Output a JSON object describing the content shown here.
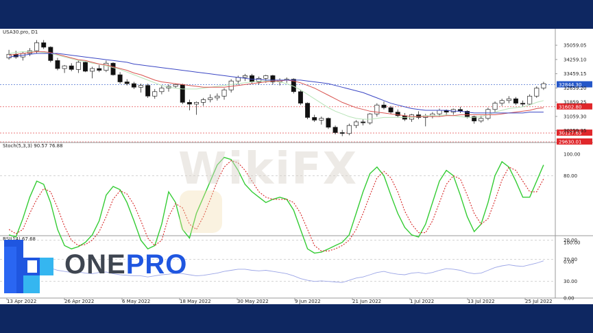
{
  "chart_data": {
    "type": "candlestick",
    "title": "USA30.pro, D1",
    "x_ticks": [
      "13 Apr 2022",
      "26 Apr 2022",
      "6 May 2022",
      "18 May 2022",
      "30 May 2022",
      "9 Jun 2022",
      "21 Jun 2022",
      "1 Jul 2022",
      "13 Jul 2022",
      "25 Jul 2022"
    ],
    "price_axis": {
      "range": [
        29630,
        35600
      ],
      "ticks": [
        "35059.05",
        "34259.10",
        "33459.15",
        "32659.20",
        "31859.25",
        "31059.30",
        "30259.35"
      ]
    },
    "price_tags": [
      {
        "label": "32844.30",
        "value": 32844.3,
        "color": "#2456c8"
      },
      {
        "label": "31602.80",
        "value": 31602.8,
        "color": "#e0272b"
      },
      {
        "label": "30127.63",
        "value": 30127.63,
        "color": "#e0272b"
      },
      {
        "label": "29630.01",
        "value": 29630.01,
        "color": "#e0272b"
      }
    ],
    "candles": [
      [
        34350,
        34800,
        34250,
        34550
      ],
      [
        34550,
        34750,
        34300,
        34400
      ],
      [
        34400,
        34700,
        34200,
        34600
      ],
      [
        34600,
        34900,
        34450,
        34750
      ],
      [
        34750,
        35350,
        34600,
        35200
      ],
      [
        35200,
        35350,
        34850,
        34950
      ],
      [
        34950,
        35000,
        34100,
        34200
      ],
      [
        34200,
        34350,
        33650,
        33750
      ],
      [
        33750,
        33950,
        33500,
        33900
      ],
      [
        33900,
        34050,
        33600,
        33700
      ],
      [
        33700,
        34200,
        33500,
        34100
      ],
      [
        34100,
        34150,
        33550,
        33600
      ],
      [
        33600,
        33850,
        33200,
        33750
      ],
      [
        33750,
        33950,
        33550,
        33650
      ],
      [
        33650,
        34200,
        33550,
        34050
      ],
      [
        34050,
        34100,
        33350,
        33400
      ],
      [
        33400,
        33550,
        32900,
        33000
      ],
      [
        33000,
        33150,
        32800,
        32900
      ],
      [
        32900,
        33000,
        32600,
        32700
      ],
      [
        32700,
        32900,
        32400,
        32800
      ],
      [
        32800,
        32900,
        32100,
        32200
      ],
      [
        32200,
        32600,
        32050,
        32450
      ],
      [
        32450,
        32800,
        32300,
        32650
      ],
      [
        32650,
        32850,
        32450,
        32750
      ],
      [
        32750,
        32900,
        32650,
        32850
      ],
      [
        32850,
        32900,
        31750,
        31850
      ],
      [
        31850,
        32000,
        31400,
        31750
      ],
      [
        31750,
        31900,
        31150,
        31850
      ],
      [
        31850,
        32100,
        31650,
        32000
      ],
      [
        32000,
        32300,
        31850,
        32100
      ],
      [
        32100,
        32350,
        31950,
        32200
      ],
      [
        32200,
        32650,
        32000,
        32550
      ],
      [
        32550,
        33150,
        32400,
        33050
      ],
      [
        33050,
        33350,
        32850,
        33250
      ],
      [
        33250,
        33450,
        33050,
        33350
      ],
      [
        33350,
        33450,
        32900,
        33000
      ],
      [
        33000,
        33300,
        32850,
        33200
      ],
      [
        33200,
        33400,
        32950,
        33350
      ],
      [
        33350,
        33400,
        32850,
        33000
      ],
      [
        33000,
        33200,
        32800,
        33100
      ],
      [
        33100,
        33250,
        32950,
        33150
      ],
      [
        33150,
        33200,
        32350,
        32450
      ],
      [
        32450,
        32550,
        31700,
        31800
      ],
      [
        31800,
        31850,
        30900,
        31000
      ],
      [
        31000,
        31150,
        30750,
        30850
      ],
      [
        30850,
        31050,
        30600,
        30950
      ],
      [
        30950,
        31000,
        30350,
        30450
      ],
      [
        30450,
        30550,
        30050,
        30150
      ],
      [
        30150,
        30300,
        29950,
        30100
      ],
      [
        30100,
        30650,
        30000,
        30550
      ],
      [
        30550,
        30850,
        30400,
        30750
      ],
      [
        30750,
        30900,
        30550,
        30700
      ],
      [
        30700,
        31250,
        30600,
        31200
      ],
      [
        31200,
        31800,
        31050,
        31700
      ],
      [
        31700,
        31900,
        31450,
        31550
      ],
      [
        31550,
        31650,
        31200,
        31300
      ],
      [
        31300,
        31450,
        31000,
        31100
      ],
      [
        31100,
        31250,
        30800,
        30900
      ],
      [
        30900,
        31200,
        30750,
        31150
      ],
      [
        31150,
        31350,
        30900,
        31000
      ],
      [
        31000,
        31200,
        30500,
        31100
      ],
      [
        31100,
        31300,
        30950,
        31200
      ],
      [
        31200,
        31500,
        31050,
        31400
      ],
      [
        31400,
        31450,
        31100,
        31300
      ],
      [
        31300,
        31500,
        31150,
        31450
      ],
      [
        31450,
        31600,
        31250,
        31350
      ],
      [
        31350,
        31400,
        30950,
        31050
      ],
      [
        31050,
        31100,
        30650,
        30800
      ],
      [
        30800,
        31100,
        30700,
        30950
      ],
      [
        30950,
        31550,
        30850,
        31450
      ],
      [
        31450,
        31900,
        31300,
        31800
      ],
      [
        31800,
        32050,
        31650,
        31950
      ],
      [
        31950,
        32200,
        31800,
        32050
      ],
      [
        32050,
        32150,
        31700,
        31800
      ],
      [
        31800,
        31950,
        31600,
        31750
      ],
      [
        31750,
        32300,
        31700,
        32200
      ],
      [
        32200,
        32750,
        32100,
        32650
      ],
      [
        32650,
        33000,
        32550,
        32900
      ]
    ],
    "ma_fast": [
      34500,
      34550,
      34600,
      34650,
      34700,
      34700,
      34650,
      34550,
      34450,
      34350,
      34250,
      34200,
      34100,
      34000,
      33950,
      33850,
      33750,
      33650,
      33500,
      33400,
      33250,
      33100,
      33000,
      32950,
      32900,
      32850,
      32800,
      32750,
      32700,
      32700,
      32700,
      32700,
      32750,
      32800,
      32850,
      32900,
      32950,
      33000,
      33050,
      33050,
      33100,
      33050,
      32950,
      32800,
      32650,
      32450,
      32250,
      32050,
      31850,
      31700,
      31550,
      31450,
      31350,
      31300,
      31250,
      31200,
      31150,
      31100,
      31050,
      31050,
      31050,
      31050,
      31050,
      31100,
      31100,
      31150,
      31150,
      31150,
      31150,
      31150,
      31150,
      31200,
      31250,
      31300,
      31350,
      31400,
      31500,
      31550
    ],
    "ma_slow": [
      34400,
      34450,
      34500,
      34550,
      34600,
      34600,
      34600,
      34600,
      34550,
      34500,
      34450,
      34400,
      34350,
      34300,
      34250,
      34200,
      34150,
      34100,
      34000,
      33950,
      33900,
      33850,
      33800,
      33750,
      33700,
      33650,
      33600,
      33550,
      33500,
      33450,
      33400,
      33350,
      33300,
      33250,
      33200,
      33150,
      33150,
      33100,
      33100,
      33100,
      33100,
      33100,
      33100,
      33050,
      33000,
      32950,
      32900,
      32800,
      32700,
      32600,
      32500,
      32400,
      32250,
      32100,
      31950,
      31800,
      31700,
      31600,
      31500,
      31450,
      31400,
      31400,
      31400,
      31400,
      31350,
      31350,
      31300,
      31250,
      31250,
      31250,
      31250,
      31250,
      31250,
      31250,
      31250,
      31300,
      31300,
      31300
    ],
    "ma_mid": [
      34600,
      34650,
      34700,
      34700,
      34700,
      34650,
      34600,
      34500,
      34400,
      34300,
      34200,
      34150,
      34050,
      34000,
      33900,
      33800,
      33700,
      33550,
      33400,
      33250,
      33100,
      32950,
      32800,
      32700,
      32650,
      32600,
      32600,
      32600,
      32650,
      32700,
      32750,
      32800,
      32850,
      32900,
      32950,
      33000,
      33050,
      33050,
      33050,
      33000,
      32900,
      32750,
      32550,
      32300,
      32050,
      31800,
      31550,
      31350,
      31200,
      31050,
      30950,
      30900,
      30900,
      30950,
      31000,
      31000,
      31000,
      31000,
      31000,
      31050,
      31100,
      31100,
      31100,
      31150,
      31100,
      31050,
      31000,
      31000,
      31050,
      31150,
      31300,
      31400,
      31500,
      31550,
      31600,
      31700,
      31850,
      31950
    ],
    "stoch": {
      "label": "Stoch(5,3,3) 90.57 76.88",
      "range": [
        0,
        100
      ],
      "ticks": [
        "100.00",
        "80.00",
        "20.00",
        "0.00"
      ],
      "k": [
        25,
        23,
        40,
        60,
        75,
        72,
        55,
        30,
        15,
        12,
        14,
        18,
        25,
        38,
        62,
        70,
        67,
        55,
        38,
        20,
        12,
        15,
        35,
        65,
        55,
        30,
        22,
        45,
        60,
        75,
        90,
        97,
        95,
        85,
        72,
        65,
        60,
        55,
        58,
        60,
        58,
        48,
        30,
        12,
        8,
        9,
        12,
        15,
        18,
        25,
        45,
        65,
        82,
        88,
        80,
        62,
        45,
        32,
        25,
        23,
        35,
        55,
        75,
        85,
        80,
        62,
        42,
        28,
        35,
        55,
        80,
        93,
        88,
        75,
        60,
        60,
        75,
        90
      ],
      "d": [
        30,
        26,
        30,
        45,
        58,
        68,
        65,
        50,
        33,
        20,
        15,
        16,
        20,
        28,
        42,
        58,
        66,
        63,
        53,
        38,
        22,
        15,
        20,
        42,
        54,
        50,
        35,
        30,
        42,
        58,
        75,
        88,
        94,
        92,
        85,
        75,
        65,
        60,
        58,
        58,
        58,
        55,
        45,
        30,
        15,
        10,
        10,
        12,
        15,
        20,
        30,
        45,
        62,
        78,
        84,
        78,
        65,
        47,
        35,
        27,
        27,
        38,
        55,
        72,
        80,
        77,
        62,
        45,
        35,
        40,
        57,
        76,
        88,
        85,
        75,
        65,
        65,
        77
      ],
      "k_color": "#33cc33",
      "d_color": "#d62222"
    },
    "rsi": {
      "label": "RSI(14) 67.68",
      "range": [
        0,
        100
      ],
      "ticks": [
        "100.00",
        "70.00",
        "30.00",
        "0.00"
      ],
      "values": [
        55,
        55,
        56,
        57,
        58,
        56,
        54,
        50,
        48,
        46,
        47,
        45,
        44,
        46,
        47,
        44,
        42,
        41,
        40,
        40,
        38,
        40,
        42,
        43,
        45,
        44,
        42,
        40,
        41,
        43,
        45,
        48,
        50,
        52,
        52,
        50,
        49,
        50,
        48,
        46,
        44,
        40,
        35,
        32,
        30,
        31,
        30,
        29,
        28,
        32,
        36,
        38,
        42,
        46,
        48,
        45,
        43,
        42,
        45,
        46,
        44,
        46,
        50,
        53,
        52,
        50,
        46,
        44,
        45,
        50,
        55,
        58,
        60,
        58,
        57,
        60,
        63,
        67
      ],
      "color": "#9aa4e6"
    },
    "watermark": "WikiFX",
    "logo": {
      "one": "ONE",
      "pro": "PRO"
    }
  }
}
